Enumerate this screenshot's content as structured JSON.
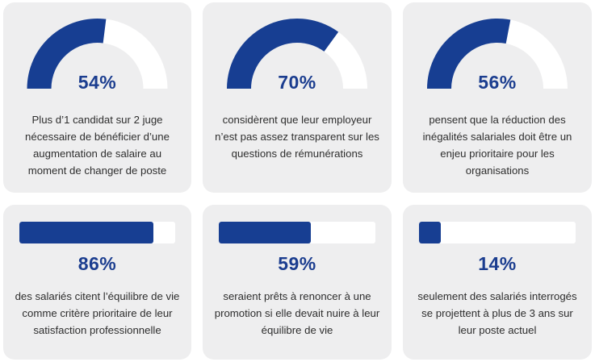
{
  "colors": {
    "accent": "#173e92",
    "track": "#ffffff",
    "card": "#eeeeef",
    "text": "#2e2e2e"
  },
  "gauges": [
    {
      "value": 54,
      "label": "54%",
      "lines": [
        "Plus d’1 candidat sur 2 juge",
        "nécessaire de bénéficier d’une",
        "augmentation de salaire au",
        "moment de changer de poste"
      ]
    },
    {
      "value": 70,
      "label": "70%",
      "lines": [
        "considèrent que leur employeur",
        "n’est pas assez transparent sur les",
        "questions de rémunérations"
      ]
    },
    {
      "value": 56,
      "label": "56%",
      "lines": [
        "pensent que la réduction des",
        "inégalités salariales doit être un",
        "enjeu prioritaire pour les",
        "organisations"
      ]
    }
  ],
  "bars": [
    {
      "value": 86,
      "label": "86%",
      "lines": [
        "des salariés citent l’équilibre de vie",
        "comme critère prioritaire de leur",
        "satisfaction professionnelle"
      ]
    },
    {
      "value": 59,
      "label": "59%",
      "lines": [
        "seraient prêts à renoncer à une",
        "promotion si elle devait nuire à leur",
        "équilibre de vie"
      ]
    },
    {
      "value": 14,
      "label": "14%",
      "lines": [
        "seulement des salariés interrogés",
        "se projettent à plus de 3 ans sur",
        "leur poste actuel"
      ]
    }
  ]
}
